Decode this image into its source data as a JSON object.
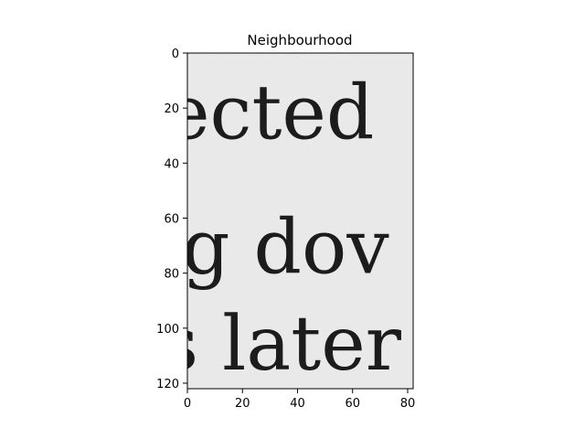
{
  "chart_data": {
    "type": "image",
    "title": "Neighbourhood",
    "xlim": [
      0,
      82
    ],
    "ylim": [
      122,
      0
    ],
    "x_ticks": [
      0,
      20,
      40,
      60,
      80
    ],
    "y_ticks": [
      0,
      20,
      40,
      60,
      80,
      100,
      120
    ],
    "colormap": "gray",
    "grid": false,
    "image_text_lines": [
      {
        "text": "ected",
        "baseline_y": 31
      },
      {
        "text": "g dov",
        "baseline_y": 80
      },
      {
        "text": "s later",
        "baseline_y": 115
      }
    ]
  },
  "colors": {
    "background": "#ffffff",
    "image_paper": "#ececec",
    "ink": "#1c1c1c"
  }
}
